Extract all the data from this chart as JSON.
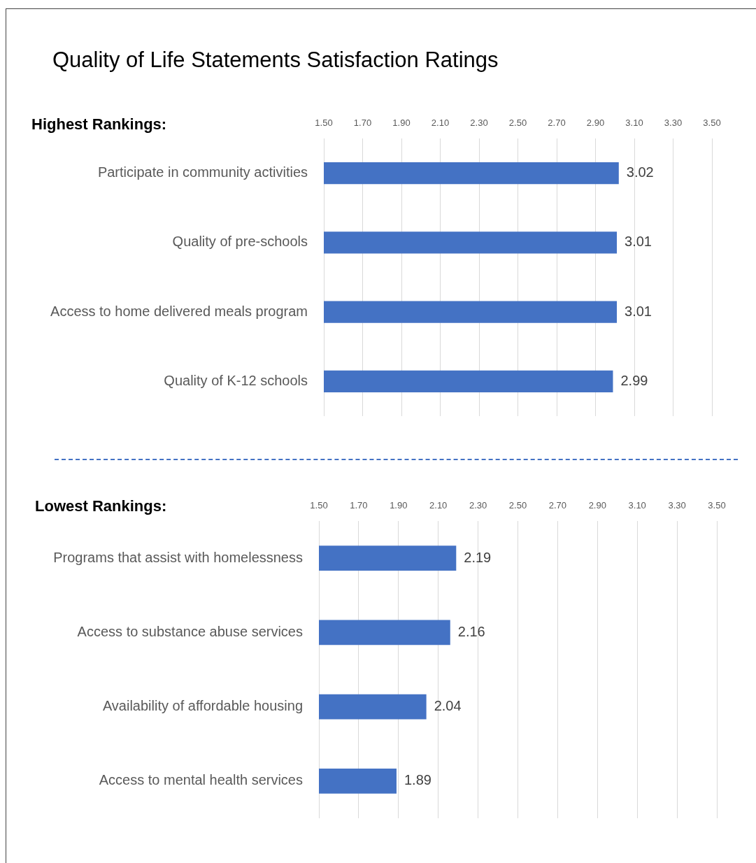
{
  "chart_data": [
    {
      "type": "bar",
      "title": "Quality of Life Statements Satisfaction Ratings",
      "subtitle": "Highest Rankings:",
      "orientation": "horizontal",
      "categories": [
        "Participate in community activities",
        "Quality of pre-schools",
        "Access to home delivered meals program",
        "Quality of K-12 schools"
      ],
      "values": [
        3.02,
        3.01,
        3.01,
        2.99
      ],
      "color": "#4472c4",
      "xlim": [
        1.5,
        3.5
      ],
      "xticks": [
        {
          "value": 1.5,
          "label": "1.50"
        },
        {
          "value": 1.7,
          "label": "1.70"
        },
        {
          "value": 1.9,
          "label": "1.90"
        },
        {
          "value": 2.1,
          "label": "2.10"
        },
        {
          "value": 2.3,
          "label": "2.30"
        },
        {
          "value": 2.5,
          "label": "2.50"
        },
        {
          "value": 2.7,
          "label": "2.70"
        },
        {
          "value": 2.9,
          "label": "2.90"
        },
        {
          "value": 3.1,
          "label": "3.10"
        },
        {
          "value": 3.3,
          "label": "3.30"
        },
        {
          "value": 3.5,
          "label": "3.50"
        }
      ],
      "grid": "x",
      "data_labels": true
    },
    {
      "type": "bar",
      "title": "Lowest Rankings:",
      "orientation": "horizontal",
      "categories": [
        "Programs that assist with homelessness",
        "Access to substance abuse services",
        "Availability of affordable housing",
        "Access to mental health services"
      ],
      "values": [
        2.19,
        2.16,
        2.04,
        1.89
      ],
      "color": "#4472c4",
      "xlim": [
        1.5,
        3.5
      ],
      "xticks": [
        {
          "value": 1.5,
          "label": "1.50"
        },
        {
          "value": 1.7,
          "label": "1.70"
        },
        {
          "value": 1.9,
          "label": "1.90"
        },
        {
          "value": 2.1,
          "label": "2.10"
        },
        {
          "value": 2.3,
          "label": "2.30"
        },
        {
          "value": 2.5,
          "label": "2.50"
        },
        {
          "value": 2.7,
          "label": "2.70"
        },
        {
          "value": 2.9,
          "label": "2.90"
        },
        {
          "value": 3.1,
          "label": "3.10"
        },
        {
          "value": 3.3,
          "label": "3.30"
        },
        {
          "value": 3.5,
          "label": "3.50"
        }
      ],
      "grid": "x",
      "data_labels": true
    }
  ]
}
